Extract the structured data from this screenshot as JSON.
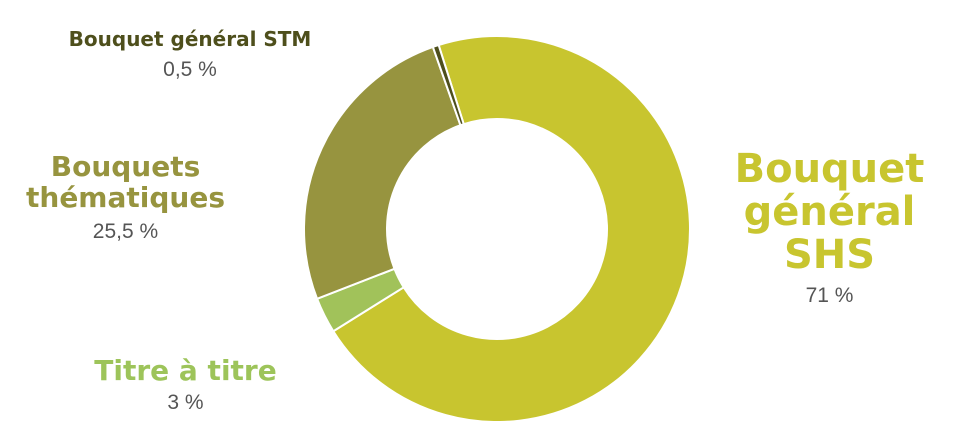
{
  "chart_data": {
    "type": "pie",
    "variant": "donut",
    "title": "",
    "start_angle_deg": -17.6,
    "direction": "clockwise",
    "series": [
      {
        "name": "Bouquet général SHS",
        "value": 71,
        "label": "71 %",
        "color": "#c8c52f"
      },
      {
        "name": "Titre à titre",
        "value": 3,
        "label": "3 %",
        "color": "#a1c25a"
      },
      {
        "name": "Bouquets thématiques",
        "value": 25.5,
        "label": "25,5 %",
        "color": "#97943f"
      },
      {
        "name": "Bouquet général STM",
        "value": 0.5,
        "label": "0,5 %",
        "color": "#4e4f1c"
      }
    ],
    "labels": {
      "shs": {
        "name": "Bouquet général SHS",
        "pct": "71 %"
      },
      "titre": {
        "name": "Titre à titre",
        "pct": "3 %"
      },
      "them": {
        "name": "Bouquets thématiques",
        "pct": "25,5 %"
      },
      "stm": {
        "name": "Bouquet général STM",
        "pct": "0,5 %"
      }
    }
  }
}
